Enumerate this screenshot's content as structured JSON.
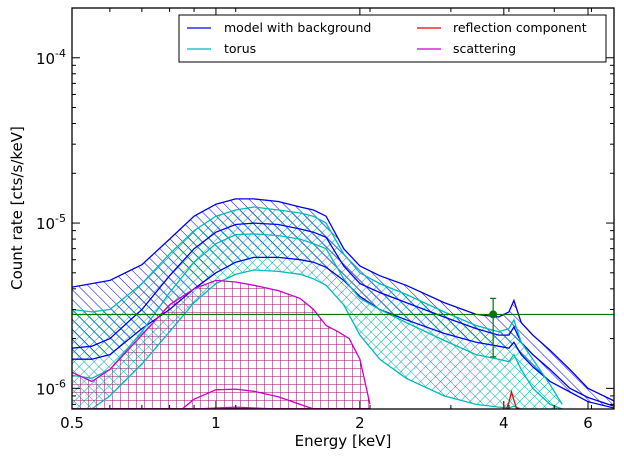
{
  "chart_data": {
    "type": "line",
    "xlabel": "Energy [keV]",
    "ylabel": "Count rate [cts/s/keV]",
    "xscale": "log",
    "yscale": "log",
    "xlim": [
      0.5,
      6.8
    ],
    "ylim": [
      7.5e-07,
      0.0002
    ],
    "x_ticks": [
      {
        "value": 0.5,
        "label": "0.5"
      },
      {
        "value": 1,
        "label": "1"
      },
      {
        "value": 2,
        "label": "2"
      },
      {
        "value": 4,
        "label": "4"
      },
      {
        "value": 6,
        "label": "6"
      }
    ],
    "y_ticks": [
      {
        "value": 1e-06,
        "base": "10",
        "exp": "-6"
      },
      {
        "value": 1e-05,
        "base": "10",
        "exp": "-5"
      },
      {
        "value": 0.0001,
        "base": "10",
        "exp": "-4"
      }
    ],
    "grid": false,
    "legend_position": "top-right",
    "legend_columns": 2,
    "series": [
      {
        "name": "model with background",
        "color": "#0000ee",
        "hatch": "diagonal",
        "x": [
          0.5,
          0.55,
          0.6,
          0.7,
          0.8,
          0.9,
          1.0,
          1.1,
          1.2,
          1.35,
          1.5,
          1.6,
          1.7,
          1.85,
          2.0,
          2.2,
          2.5,
          3.0,
          3.5,
          3.9,
          4.1,
          4.2,
          4.35,
          4.6,
          5.0,
          5.5,
          6.0,
          6.8
        ],
        "upper": [
          4.1e-06,
          4.3e-06,
          4.5e-06,
          5.6e-06,
          8e-06,
          1.1e-05,
          1.3e-05,
          1.4e-05,
          1.4e-05,
          1.35e-05,
          1.25e-05,
          1.2e-05,
          1.1e-05,
          7e-06,
          5.5e-06,
          4.8e-06,
          4.2e-06,
          3.3e-06,
          2.8e-06,
          2.7e-06,
          2.9e-06,
          3.4e-06,
          2.5e-06,
          2.1e-06,
          1.7e-06,
          1.3e-06,
          1e-06,
          8.4e-07
        ],
        "median": [
          1.75e-06,
          1.8e-06,
          2e-06,
          3e-06,
          4.8e-06,
          7e-06,
          8.8e-06,
          9.8e-06,
          1e-05,
          9.8e-06,
          9.2e-06,
          8.8e-06,
          8.2e-06,
          5.5e-06,
          4.3e-06,
          3.8e-06,
          3.3e-06,
          2.7e-06,
          2.3e-06,
          2.1e-06,
          2.1e-06,
          2.35e-06,
          1.9e-06,
          1.6e-06,
          1.3e-06,
          1e-06,
          8.8e-07,
          7.8e-07
        ],
        "lower": [
          1.5e-06,
          1.5e-06,
          1.6e-06,
          2.3e-06,
          3e-06,
          4e-06,
          5e-06,
          5.8e-06,
          6.2e-06,
          6.2e-06,
          6e-06,
          5.8e-06,
          5.4e-06,
          4.5e-06,
          3.6e-06,
          3e-06,
          2.6e-06,
          2.15e-06,
          1.9e-06,
          1.8e-06,
          1.75e-06,
          1.9e-06,
          1.6e-06,
          1.35e-06,
          1.1e-06,
          9.5e-07,
          8.3e-07,
          7.6e-07
        ]
      },
      {
        "name": "torus",
        "color": "#00bbbb",
        "hatch": "cross",
        "x": [
          0.5,
          0.55,
          0.6,
          0.7,
          0.8,
          0.9,
          1.0,
          1.1,
          1.2,
          1.35,
          1.5,
          1.6,
          1.7,
          1.85,
          2.0,
          2.2,
          2.5,
          3.0,
          3.5,
          3.9,
          4.1,
          4.2,
          4.35,
          4.6,
          5.0,
          5.3
        ],
        "upper": [
          3e-06,
          2.9e-06,
          3e-06,
          4.3e-06,
          6.5e-06,
          9e-06,
          1.1e-05,
          1.2e-05,
          1.25e-05,
          1.2e-05,
          1.15e-05,
          1.1e-05,
          1e-05,
          6.5e-06,
          5e-06,
          4.3e-06,
          3.7e-06,
          2.9e-06,
          2.4e-06,
          2.2e-06,
          2.3e-06,
          2.6e-06,
          1.9e-06,
          1.5e-06,
          1.05e-06,
          8e-07
        ],
        "median": [
          1.2e-06,
          1.15e-06,
          1.3e-06,
          2.2e-06,
          3.8e-06,
          5.8e-06,
          7.5e-06,
          8.5e-06,
          8.6e-06,
          8.4e-06,
          8e-06,
          7.5e-06,
          7e-06,
          4.6e-06,
          3.5e-06,
          3e-06,
          2.5e-06,
          1.95e-06,
          1.6e-06,
          1.5e-06,
          1.45e-06,
          1.6e-06,
          1.3e-06,
          1e-06,
          8e-07,
          7.5e-07
        ],
        "lower": [
          7.5e-07,
          7.5e-07,
          9e-07,
          1.4e-06,
          2.2e-06,
          3.3e-06,
          4.3e-06,
          4.9e-06,
          5.2e-06,
          5.1e-06,
          4.9e-06,
          4.6e-06,
          4.2e-06,
          3.2e-06,
          2.1e-06,
          1.5e-06,
          1.15e-06,
          9e-07,
          8e-07,
          7.7e-07,
          7.6e-07,
          7.8e-07,
          7.5e-07,
          7.5e-07,
          7.5e-07,
          7.5e-07
        ]
      },
      {
        "name": "reflection component",
        "color": "#ee0000",
        "hatch": "none",
        "x": [
          4.05,
          4.1,
          4.15,
          4.2,
          4.25,
          4.3
        ],
        "median": [
          7.5e-07,
          8.2e-07,
          9.5e-07,
          8.5e-07,
          7.6e-07,
          7.5e-07
        ]
      },
      {
        "name": "scattering",
        "color": "#cc00cc",
        "hatch": "grid",
        "x": [
          0.5,
          0.55,
          0.6,
          0.7,
          0.8,
          0.9,
          1.0,
          1.1,
          1.2,
          1.35,
          1.5,
          1.6,
          1.7,
          1.8,
          1.9,
          2.0,
          2.1
        ],
        "upper": [
          1.25e-06,
          1.1e-06,
          1.3e-06,
          2.1e-06,
          3.2e-06,
          4e-06,
          4.5e-06,
          4.4e-06,
          4.2e-06,
          3.9e-06,
          3.5e-06,
          3e-06,
          2.4e-06,
          2.2e-06,
          2e-06,
          1.5e-06,
          8e-07
        ],
        "median": [
          7.5e-07,
          7.5e-07,
          7.5e-07,
          7.5e-07,
          7.5e-07,
          7.5e-07,
          7.6e-07,
          7.7e-07,
          7.6e-07,
          7.5e-07,
          7.5e-07,
          7.5e-07,
          7.5e-07,
          7.5e-07,
          7.5e-07,
          7.5e-07,
          7.5e-07
        ],
        "lower": [
          7.5e-07,
          7.5e-07,
          7.5e-07,
          7.5e-07,
          7.5e-07,
          7.5e-07,
          7.5e-07,
          7.5e-07,
          7.5e-07,
          7.5e-07,
          7.5e-07,
          7.5e-07,
          7.5e-07,
          7.5e-07,
          7.5e-07,
          7.5e-07,
          7.5e-07
        ],
        "inner_curve": {
          "x": [
            0.85,
            0.9,
            1.0,
            1.1,
            1.2,
            1.35,
            1.5,
            1.6
          ],
          "y": [
            7.5e-07,
            8.6e-07,
            9.8e-07,
            9.9e-07,
            9.6e-07,
            8.9e-07,
            8e-07,
            7.5e-07
          ]
        }
      }
    ],
    "reference_line": {
      "y": 2.8e-06,
      "color": "#007700"
    },
    "data_points": [
      {
        "x": 3.8,
        "y": 2.8e-06,
        "yerr_low": 1.55e-06,
        "yerr_high": 3.5e-06,
        "color": "#007700"
      }
    ]
  }
}
